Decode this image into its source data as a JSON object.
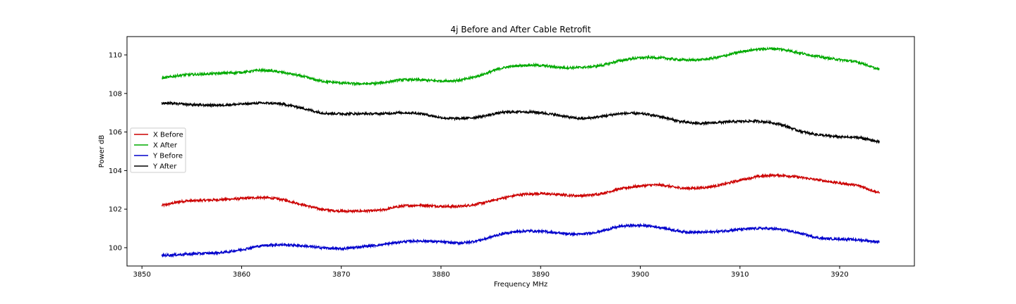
{
  "chart_data": {
    "type": "line",
    "title": "4j Before and After Cable Retrofit",
    "xlabel": "Frequency MHz",
    "ylabel": "Power dB",
    "xlim": [
      3848.5,
      3927.5
    ],
    "ylim": [
      99.05,
      110.95
    ],
    "xticks": [
      3850,
      3860,
      3870,
      3880,
      3890,
      3900,
      3910,
      3920
    ],
    "yticks": [
      100,
      102,
      104,
      106,
      108,
      110
    ],
    "grid": false,
    "legend_position": "center-left",
    "series": [
      {
        "name": "X Before",
        "color": "#cc0000",
        "x": [
          3852,
          3854,
          3856,
          3858,
          3860,
          3862,
          3864,
          3866,
          3868,
          3870,
          3872,
          3874,
          3876,
          3878,
          3880,
          3882,
          3884,
          3886,
          3888,
          3890,
          3892,
          3894,
          3896,
          3898,
          3900,
          3902,
          3904,
          3906,
          3908,
          3910,
          3912,
          3914,
          3916,
          3918,
          3920,
          3922,
          3924
        ],
        "y": [
          102.2,
          102.4,
          102.45,
          102.5,
          102.55,
          102.6,
          102.5,
          102.25,
          102.0,
          101.9,
          101.9,
          101.95,
          102.15,
          102.2,
          102.15,
          102.15,
          102.3,
          102.55,
          102.75,
          102.8,
          102.75,
          102.7,
          102.8,
          103.05,
          103.2,
          103.25,
          103.1,
          103.1,
          103.25,
          103.5,
          103.7,
          103.75,
          103.65,
          103.5,
          103.35,
          103.2,
          102.85
        ]
      },
      {
        "name": "X After",
        "color": "#00aa00",
        "x": [
          3852,
          3854,
          3856,
          3858,
          3860,
          3862,
          3864,
          3866,
          3868,
          3870,
          3872,
          3874,
          3876,
          3878,
          3880,
          3882,
          3884,
          3886,
          3888,
          3890,
          3892,
          3894,
          3896,
          3898,
          3900,
          3902,
          3904,
          3906,
          3908,
          3910,
          3912,
          3914,
          3916,
          3918,
          3920,
          3922,
          3924
        ],
        "y": [
          108.8,
          108.95,
          109.0,
          109.05,
          109.1,
          109.2,
          109.1,
          108.9,
          108.65,
          108.55,
          108.5,
          108.55,
          108.7,
          108.7,
          108.65,
          108.7,
          108.95,
          109.3,
          109.45,
          109.45,
          109.35,
          109.35,
          109.45,
          109.7,
          109.85,
          109.85,
          109.75,
          109.75,
          109.9,
          110.15,
          110.3,
          110.3,
          110.1,
          109.9,
          109.75,
          109.6,
          109.25
        ]
      },
      {
        "name": "Y Before",
        "color": "#0000cc",
        "x": [
          3852,
          3854,
          3856,
          3858,
          3860,
          3862,
          3864,
          3866,
          3868,
          3870,
          3872,
          3874,
          3876,
          3878,
          3880,
          3882,
          3884,
          3886,
          3888,
          3890,
          3892,
          3894,
          3896,
          3898,
          3900,
          3902,
          3904,
          3906,
          3908,
          3910,
          3912,
          3914,
          3916,
          3918,
          3920,
          3922,
          3924
        ],
        "y": [
          99.6,
          99.65,
          99.7,
          99.75,
          99.9,
          100.1,
          100.15,
          100.1,
          100.0,
          99.95,
          100.05,
          100.15,
          100.3,
          100.35,
          100.3,
          100.25,
          100.4,
          100.7,
          100.85,
          100.85,
          100.75,
          100.7,
          100.85,
          101.1,
          101.15,
          101.05,
          100.85,
          100.8,
          100.85,
          100.95,
          101.0,
          100.95,
          100.75,
          100.5,
          100.45,
          100.4,
          100.3
        ]
      },
      {
        "name": "Y After",
        "color": "#000000",
        "x": [
          3852,
          3854,
          3856,
          3858,
          3860,
          3862,
          3864,
          3866,
          3868,
          3870,
          3872,
          3874,
          3876,
          3878,
          3880,
          3882,
          3884,
          3886,
          3888,
          3890,
          3892,
          3894,
          3896,
          3898,
          3900,
          3902,
          3904,
          3906,
          3908,
          3910,
          3912,
          3914,
          3916,
          3918,
          3920,
          3922,
          3924
        ],
        "y": [
          107.5,
          107.45,
          107.4,
          107.4,
          107.45,
          107.5,
          107.45,
          107.25,
          107.0,
          106.95,
          106.95,
          106.95,
          107.0,
          106.95,
          106.75,
          106.7,
          106.8,
          107.0,
          107.05,
          107.0,
          106.85,
          106.7,
          106.8,
          106.95,
          106.95,
          106.8,
          106.55,
          106.45,
          106.5,
          106.55,
          106.55,
          106.4,
          106.05,
          105.85,
          105.75,
          105.7,
          105.5
        ]
      }
    ]
  }
}
